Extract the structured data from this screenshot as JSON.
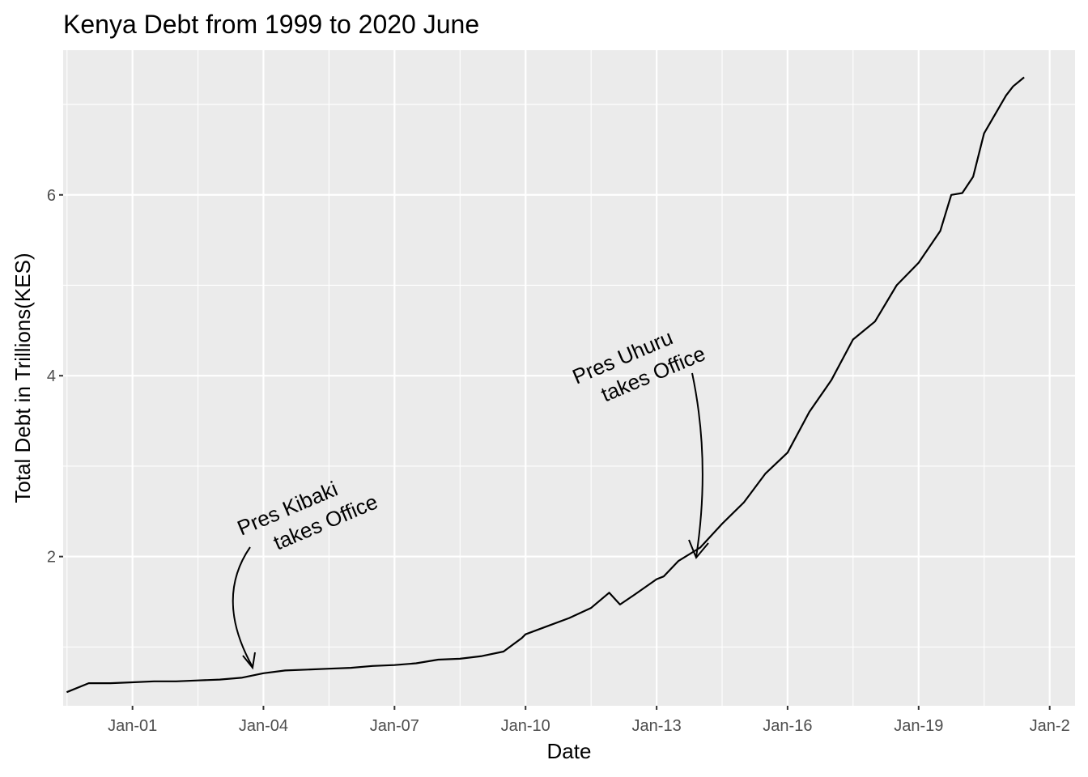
{
  "chart_data": {
    "type": "line",
    "title": "Kenya Debt from 1999 to 2020 June",
    "xlabel": "Date",
    "ylabel": "Total Debt in Trillions(KES)",
    "x_ticks": [
      "Jan-01",
      "Jan-04",
      "Jan-07",
      "Jan-10",
      "Jan-13",
      "Jan-16",
      "Jan-19",
      "Jan-2"
    ],
    "y_ticks": [
      "2",
      "4",
      "6"
    ],
    "xlim": [
      "1999-06-01",
      "2022-08-01"
    ],
    "ylim": [
      0.35,
      7.6
    ],
    "grid": true,
    "colors": {
      "panel": "#ebebeb",
      "grid": "#ffffff",
      "line": "#000000"
    },
    "series": [
      {
        "x": [
          "1999-07-01",
          "2000-01-01",
          "2000-07-01",
          "2001-01-01",
          "2001-07-01",
          "2002-01-01",
          "2002-07-01",
          "2003-01-01",
          "2003-07-01",
          "2004-01-01",
          "2004-07-01",
          "2005-01-01",
          "2005-07-01",
          "2006-01-01",
          "2006-07-01",
          "2007-01-01",
          "2007-07-01",
          "2008-01-01",
          "2008-07-01",
          "2009-01-01",
          "2009-07-01",
          "2009-12-01",
          "2010-01-01",
          "2010-07-01",
          "2011-01-01",
          "2011-07-01",
          "2011-12-01",
          "2012-03-01",
          "2012-07-01",
          "2013-01-01",
          "2013-03-01",
          "2013-07-01",
          "2014-01-01",
          "2014-07-01",
          "2015-01-01",
          "2015-07-01",
          "2016-01-01",
          "2016-07-01",
          "2017-01-01",
          "2017-07-01",
          "2018-01-01",
          "2018-07-01",
          "2019-01-01",
          "2019-07-01",
          "2019-10-01",
          "2020-01-01",
          "2020-04-01",
          "2020-07-01",
          "2021-01-01",
          "2021-03-01",
          "2021-06-01"
        ],
        "values": [
          0.5,
          0.6,
          0.6,
          0.61,
          0.62,
          0.62,
          0.63,
          0.64,
          0.66,
          0.71,
          0.74,
          0.75,
          0.76,
          0.77,
          0.79,
          0.8,
          0.82,
          0.86,
          0.87,
          0.9,
          0.95,
          1.1,
          1.14,
          1.23,
          1.32,
          1.43,
          1.6,
          1.47,
          1.58,
          1.75,
          1.78,
          1.95,
          2.1,
          2.36,
          2.6,
          2.92,
          3.15,
          3.6,
          3.95,
          4.4,
          4.6,
          5.0,
          5.25,
          5.6,
          6.0,
          6.02,
          6.2,
          6.68,
          7.1,
          7.2,
          7.3
        ]
      }
    ],
    "annotations": [
      {
        "text": [
          "Pres Kibaki",
          "takes Office"
        ],
        "date": "2002-12-01",
        "value": 0.62
      },
      {
        "text": [
          "Pres Uhuru",
          "takes Office"
        ],
        "date": "2013-04-01",
        "value": 1.85
      }
    ]
  }
}
